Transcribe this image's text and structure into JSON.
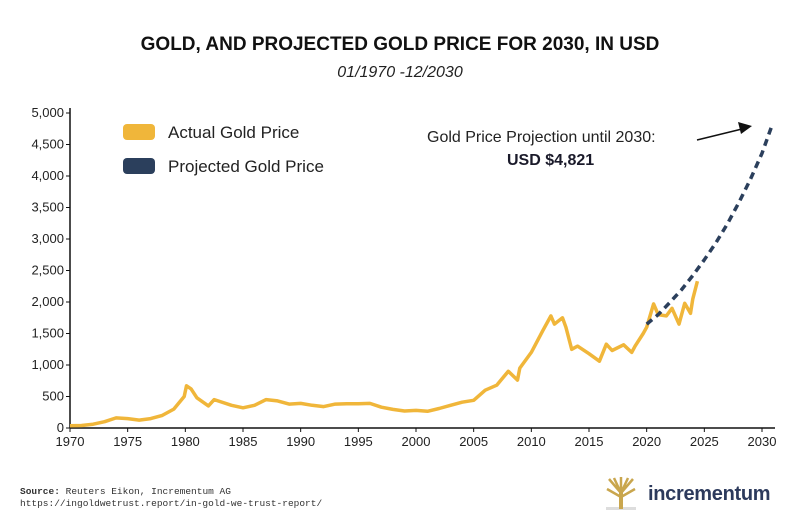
{
  "chart_data": {
    "type": "line",
    "title": "GOLD, AND PROJECTED GOLD PRICE FOR 2030, IN USD",
    "subtitle": "01/1970 -12/2030",
    "xlim": [
      1970,
      2031
    ],
    "ylim": [
      0,
      5000
    ],
    "x_ticks": [
      "1970",
      "1975",
      "1980",
      "1985",
      "1990",
      "1995",
      "2000",
      "2005",
      "2010",
      "2015",
      "2020",
      "2025",
      "2030"
    ],
    "y_ticks": [
      "0",
      "500",
      "1,000",
      "1,500",
      "2,000",
      "2,500",
      "3,000",
      "3,500",
      "4,000",
      "4,500",
      "5,000"
    ],
    "grid": false,
    "legend_placement": "top-left",
    "series": [
      {
        "name": "Actual Gold Price",
        "color": "#f0b63a",
        "style": "solid",
        "x": [
          1970,
          1971,
          1972,
          1973,
          1974,
          1975,
          1976,
          1977,
          1978,
          1979,
          1979.9,
          1980.1,
          1980.5,
          1981,
          1982,
          1982.5,
          1983,
          1984,
          1985,
          1986,
          1987,
          1988,
          1989,
          1990,
          1991,
          1992,
          1993,
          1994,
          1995,
          1996,
          1997,
          1998,
          1999,
          2000,
          2001,
          2002,
          2003,
          2004,
          2005,
          2006,
          2007,
          2008,
          2008.8,
          2009,
          2010,
          2011,
          2011.7,
          2012,
          2012.7,
          2013,
          2013.5,
          2014,
          2015,
          2015.9,
          2016.5,
          2017,
          2018,
          2018.7,
          2019,
          2019.7,
          2020,
          2020.6,
          2021,
          2021.7,
          2022.2,
          2022.8,
          2023.3,
          2023.8,
          2024,
          2024.4
        ],
        "y": [
          35,
          40,
          60,
          100,
          160,
          150,
          125,
          150,
          200,
          300,
          500,
          670,
          620,
          480,
          350,
          450,
          420,
          360,
          320,
          360,
          450,
          430,
          380,
          390,
          360,
          340,
          380,
          385,
          385,
          390,
          330,
          295,
          270,
          280,
          265,
          310,
          360,
          410,
          440,
          600,
          680,
          900,
          760,
          950,
          1200,
          1550,
          1780,
          1650,
          1750,
          1600,
          1250,
          1300,
          1180,
          1060,
          1330,
          1230,
          1320,
          1200,
          1300,
          1500,
          1600,
          1970,
          1800,
          1780,
          1900,
          1650,
          1980,
          1820,
          2050,
          2330
        ]
      },
      {
        "name": "Projected Gold Price",
        "color": "#2b3f5c",
        "style": "dashed",
        "x": [
          2020,
          2021,
          2022,
          2023,
          2024,
          2025,
          2026,
          2027,
          2028,
          2029,
          2030,
          2030.9
        ],
        "y": [
          1650,
          1800,
          1990,
          2190,
          2420,
          2670,
          2940,
          3240,
          3580,
          3950,
          4360,
          4821
        ]
      }
    ],
    "annotation": {
      "text": "Gold Price Projection until 2030:",
      "value": "USD $4,821"
    }
  },
  "footer": {
    "source_label": "Source:",
    "source_text": "Reuters Eikon, Incrementum AG",
    "url": "https://ingoldwetrust.report/in-gold-we-trust-report/",
    "brand": "incrementum"
  }
}
